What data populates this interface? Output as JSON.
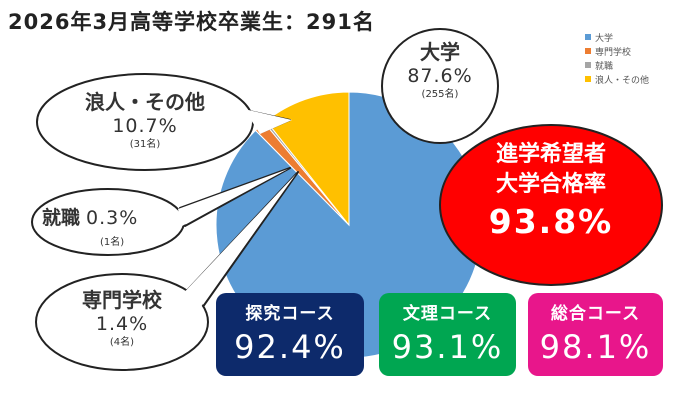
{
  "title": "2026年3月高等学校卒業生：291名",
  "chart_data": {
    "type": "pie",
    "title": "2026年3月高等学校卒業生：291名",
    "slices": [
      {
        "label": "大学",
        "percent": 87.6,
        "count": 255,
        "percent_label": "87.6%",
        "count_label": "(255名)",
        "color": "#5b9bd5"
      },
      {
        "label": "専門学校",
        "percent": 1.4,
        "count": 4,
        "percent_label": "1.4%",
        "count_label": "(4名)",
        "color": "#ed7d31"
      },
      {
        "label": "就職",
        "percent": 0.3,
        "count": 1,
        "percent_label": "0.3%",
        "count_label": "(1名)",
        "color": "#a5a5a5"
      },
      {
        "label": "浪人・その他",
        "percent": 10.7,
        "count": 31,
        "percent_label": "10.7%",
        "count_label": "(31名)",
        "color": "#ffc000"
      }
    ],
    "legend": [
      "大学",
      "専門学校",
      "就職",
      "浪人・その他"
    ],
    "legend_position": "top-right"
  },
  "highlight": {
    "line1": "進学希望者",
    "line2": "大学合格率",
    "rate": "93.8%",
    "color": "#ff0000"
  },
  "courses": [
    {
      "name": "探究コース",
      "rate": "92.4%",
      "color": "#0d2a6b"
    },
    {
      "name": "文理コース",
      "rate": "93.1%",
      "color": "#00a651"
    },
    {
      "name": "総合コース",
      "rate": "98.1%",
      "color": "#e8168b"
    }
  ]
}
